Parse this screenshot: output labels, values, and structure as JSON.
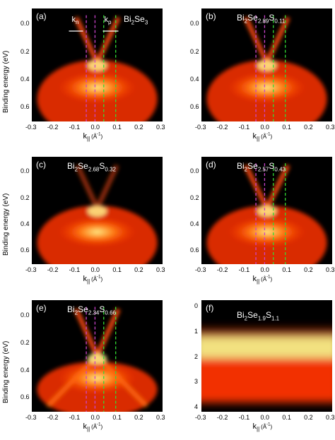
{
  "colors": {
    "background": "#000000",
    "band": "#ff3300",
    "hot": "#ffee88",
    "magenta": "#cc44cc",
    "green": "#33dd33",
    "white": "#ffffff"
  },
  "axes": {
    "ylabel": "Binding energy (eV)",
    "xlabel_main": "k",
    "xlabel_sub": "||",
    "xlabel_unit": "(Å",
    "xlabel_exp": "-1",
    "xlabel_close": ")",
    "xticks": [
      "-0.3",
      "-0.2",
      "-0.1",
      "0.0",
      "0.1",
      "0.2",
      "0.3"
    ],
    "yticks_small": [
      "0.0",
      "0.2",
      "0.4",
      "0.6"
    ],
    "yticks_f": [
      "0",
      "1",
      "2",
      "3",
      "4"
    ]
  },
  "panels": [
    {
      "tag": "(a)",
      "formula": [
        {
          "t": "Bi"
        },
        {
          "s": "2"
        },
        {
          "t": "Se"
        },
        {
          "s": "3"
        }
      ]
    },
    {
      "tag": "(b)",
      "formula": [
        {
          "t": "Bi"
        },
        {
          "s": "2"
        },
        {
          "t": "Se"
        },
        {
          "s": "2.89"
        },
        {
          "t": "S"
        },
        {
          "s": "0.11"
        }
      ]
    },
    {
      "tag": "(c)",
      "formula": [
        {
          "t": "Bi"
        },
        {
          "s": "2"
        },
        {
          "t": "Se"
        },
        {
          "s": "2.68"
        },
        {
          "t": "S"
        },
        {
          "s": "0.32"
        }
      ]
    },
    {
      "tag": "(d)",
      "formula": [
        {
          "t": "Bi"
        },
        {
          "s": "2"
        },
        {
          "t": "Se"
        },
        {
          "s": "2.57"
        },
        {
          "t": "S"
        },
        {
          "s": "0.43"
        }
      ]
    },
    {
      "tag": "(e)",
      "formula": [
        {
          "t": "Bi"
        },
        {
          "s": "2"
        },
        {
          "t": "Se"
        },
        {
          "s": "2.34"
        },
        {
          "t": "S"
        },
        {
          "s": "0.66"
        }
      ]
    },
    {
      "tag": "(f)",
      "formula": [
        {
          "t": "Bi"
        },
        {
          "s": "2"
        },
        {
          "t": "Se"
        },
        {
          "s": "1.9"
        },
        {
          "t": "S"
        },
        {
          "s": "1.1"
        }
      ]
    }
  ],
  "annotations": {
    "kn_main": "k",
    "kn_sub": "n",
    "kp_main": "k",
    "kp_sub": "p"
  }
}
